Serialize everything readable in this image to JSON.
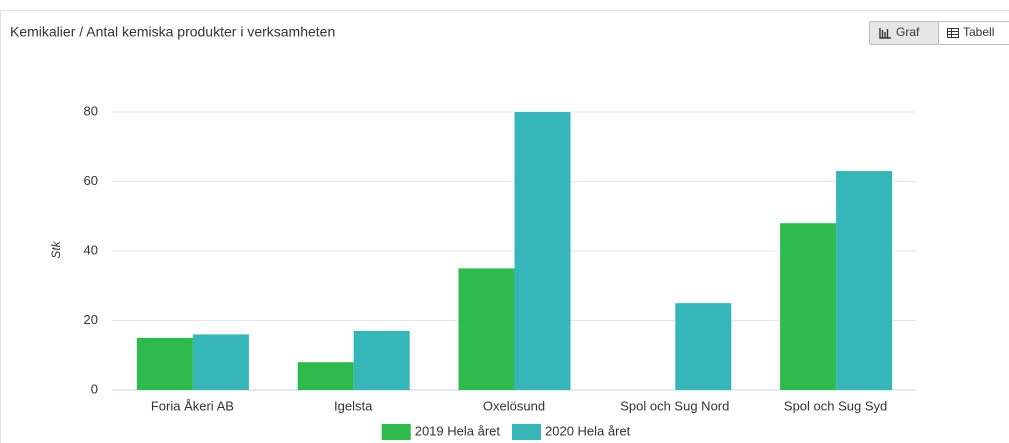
{
  "header": {
    "title": "Kemikalier / Antal kemiska produkter i verksamheten",
    "buttons": [
      "Graf",
      "Tabell"
    ]
  },
  "chart_data": {
    "type": "bar",
    "y_label": "Stk",
    "categories": [
      "Foria Åkeri AB",
      "Igelsta",
      "Oxelösund",
      "Spol och Sug Nord",
      "Spol och Sug Syd"
    ],
    "series": [
      {
        "name": "2019 Hela året",
        "color": "#2dbb4e",
        "values": [
          15,
          8,
          35,
          0,
          48
        ]
      },
      {
        "name": "2020 Hela året",
        "color": "#35b6b9",
        "values": [
          16,
          17,
          80,
          25,
          63
        ]
      }
    ],
    "ylim": [
      0,
      80
    ],
    "yticks": [
      0,
      20,
      40,
      60,
      80
    ],
    "grid": true,
    "legend": "bottom"
  }
}
